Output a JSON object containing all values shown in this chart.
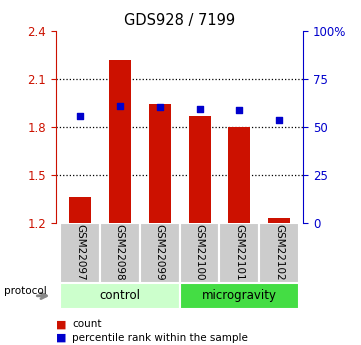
{
  "title": "GDS928 / 7199",
  "samples": [
    "GSM22097",
    "GSM22098",
    "GSM22099",
    "GSM22100",
    "GSM22101",
    "GSM22102"
  ],
  "bar_values": [
    1.36,
    2.22,
    1.94,
    1.87,
    1.8,
    1.23
  ],
  "bar_bottom": 1.2,
  "percentile_values": [
    1.865,
    1.93,
    1.925,
    1.91,
    1.905,
    1.845
  ],
  "bar_color": "#cc1100",
  "percentile_color": "#0000cc",
  "ylim": [
    1.2,
    2.4
  ],
  "yticks_left": [
    1.2,
    1.5,
    1.8,
    2.1,
    2.4
  ],
  "yticks_right": [
    0,
    25,
    50,
    75,
    100
  ],
  "right_tick_labels": [
    "0",
    "25",
    "50",
    "75",
    "100%"
  ],
  "groups": [
    {
      "label": "control",
      "color": "#ccffcc"
    },
    {
      "label": "microgravity",
      "color": "#44dd44"
    }
  ],
  "group_sizes": [
    3,
    3
  ],
  "protocol_label": "protocol",
  "legend_count_label": "count",
  "legend_percentile_label": "percentile rank within the sample",
  "bar_color_hex": "#cc1100",
  "percentile_color_hex": "#0000cc",
  "bar_width": 0.55,
  "sample_box_color": "#cccccc"
}
